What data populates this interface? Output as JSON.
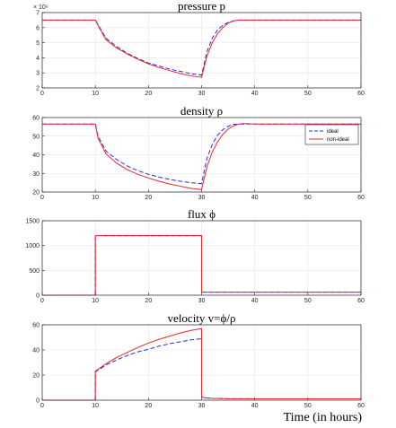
{
  "colors": {
    "ideal": "#2b2bd6",
    "non_ideal": "#e8262b",
    "grid": "#e6e6e6",
    "axis": "#262626"
  },
  "xlabel": "Time (in hours)",
  "legend": {
    "ideal": "ideal",
    "non_ideal": "non-ideal"
  },
  "chart_data": [
    {
      "type": "line",
      "title": "pressure p",
      "exponent_label": "× 10⁶",
      "xlim": [
        0,
        60
      ],
      "ylim": [
        2,
        7
      ],
      "xticks": [
        0,
        10,
        20,
        30,
        40,
        50,
        60
      ],
      "yticks": [
        2,
        3,
        4,
        5,
        6,
        7
      ],
      "grid": true,
      "series": [
        {
          "name": "ideal",
          "style": "dashed",
          "x": [
            0,
            10,
            10.5,
            12,
            14,
            16,
            18,
            20,
            22,
            24,
            26,
            28,
            30,
            30,
            31,
            32,
            33,
            34,
            35,
            36,
            37,
            38,
            40,
            50,
            60
          ],
          "y": [
            6.5,
            6.5,
            6.2,
            5.3,
            4.75,
            4.3,
            3.95,
            3.65,
            3.45,
            3.25,
            3.1,
            2.95,
            2.85,
            2.85,
            4.4,
            5.3,
            5.85,
            6.15,
            6.35,
            6.45,
            6.5,
            6.5,
            6.5,
            6.5,
            6.5
          ]
        },
        {
          "name": "non-ideal",
          "style": "solid",
          "x": [
            0,
            10,
            10.5,
            12,
            14,
            16,
            18,
            20,
            22,
            24,
            26,
            28,
            30,
            30,
            31,
            32,
            33,
            34,
            35,
            36,
            37,
            38,
            40,
            50,
            60
          ],
          "y": [
            6.5,
            6.5,
            6.15,
            5.2,
            4.65,
            4.25,
            3.9,
            3.6,
            3.35,
            3.15,
            2.95,
            2.8,
            2.7,
            2.7,
            4.1,
            5.0,
            5.6,
            6.0,
            6.3,
            6.45,
            6.5,
            6.5,
            6.5,
            6.5,
            6.5
          ]
        }
      ]
    },
    {
      "type": "line",
      "title": "density ρ",
      "xlim": [
        0,
        60
      ],
      "ylim": [
        20,
        60
      ],
      "xticks": [
        0,
        10,
        20,
        30,
        40,
        50,
        60
      ],
      "yticks": [
        20,
        30,
        40,
        50,
        60
      ],
      "grid": true,
      "legend_position": "top-right",
      "series": [
        {
          "name": "ideal",
          "style": "dashed",
          "x": [
            0,
            10,
            10.5,
            12,
            14,
            16,
            18,
            20,
            22,
            24,
            26,
            28,
            30,
            30,
            31,
            32,
            33,
            34,
            35,
            36,
            37,
            38,
            40,
            50,
            60
          ],
          "y": [
            56.5,
            56.5,
            50,
            42,
            37.5,
            34,
            31.5,
            29.5,
            28,
            26.8,
            25.8,
            25,
            24.5,
            24.5,
            38,
            45.5,
            50.5,
            53.5,
            55.3,
            56.3,
            56.5,
            56.5,
            56.5,
            56.5,
            56.5
          ]
        },
        {
          "name": "non-ideal",
          "style": "solid",
          "x": [
            0,
            10,
            10.5,
            12,
            14,
            16,
            18,
            20,
            22,
            24,
            26,
            28,
            30,
            30,
            31,
            32,
            33,
            34,
            35,
            36,
            37,
            38,
            40,
            50,
            60
          ],
          "y": [
            56.5,
            56.5,
            49,
            40.5,
            35.5,
            32,
            29.5,
            27.5,
            25.8,
            24.3,
            23.1,
            22,
            21.3,
            21.3,
            33.5,
            41.5,
            47,
            51,
            53.8,
            55.5,
            56.5,
            56.8,
            56.5,
            56.5,
            56.5
          ]
        }
      ]
    },
    {
      "type": "line",
      "title": "flux ϕ",
      "xlim": [
        0,
        60
      ],
      "ylim": [
        0,
        1500
      ],
      "xticks": [
        0,
        10,
        20,
        30,
        40,
        50,
        60
      ],
      "yticks": [
        0,
        500,
        1000,
        1500
      ],
      "grid": true,
      "series": [
        {
          "name": "ideal",
          "style": "dashed",
          "x": [
            0,
            10,
            10,
            30,
            30,
            60
          ],
          "y": [
            0,
            0,
            1200,
            1200,
            60,
            60
          ]
        },
        {
          "name": "non-ideal",
          "style": "solid",
          "x": [
            0,
            10,
            10,
            30,
            30,
            60
          ],
          "y": [
            0,
            0,
            1200,
            1200,
            60,
            60
          ]
        }
      ]
    },
    {
      "type": "line",
      "title": "velocity v=ϕ/ρ",
      "xlim": [
        0,
        60
      ],
      "ylim": [
        0,
        60
      ],
      "xticks": [
        0,
        10,
        20,
        30,
        40,
        50,
        60
      ],
      "yticks": [
        0,
        20,
        40,
        60
      ],
      "grid": true,
      "series": [
        {
          "name": "ideal",
          "style": "dashed",
          "x": [
            0,
            10,
            10,
            12,
            14,
            16,
            18,
            20,
            22,
            24,
            26,
            28,
            30,
            30,
            30.5,
            32,
            35,
            40,
            60
          ],
          "y": [
            0,
            0,
            22.5,
            28,
            32,
            35.5,
            38.5,
            40.5,
            43,
            45,
            46.5,
            48,
            49,
            2.5,
            1.8,
            1.4,
            1.2,
            1.1,
            1.1
          ]
        },
        {
          "name": "non-ideal",
          "style": "solid",
          "x": [
            0,
            10,
            10,
            12,
            14,
            16,
            18,
            20,
            22,
            24,
            26,
            28,
            30,
            30,
            30.5,
            32,
            35,
            40,
            60
          ],
          "y": [
            0,
            0,
            23,
            29,
            34,
            38,
            42,
            45.5,
            48.5,
            51,
            53.5,
            55.5,
            57,
            2.8,
            2.0,
            1.5,
            1.2,
            1.1,
            1.1
          ]
        }
      ]
    }
  ]
}
